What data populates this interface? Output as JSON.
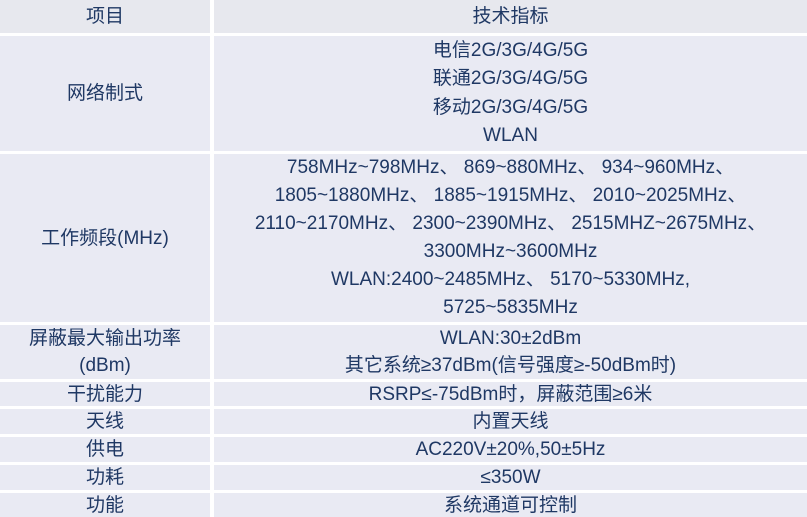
{
  "table": {
    "header": {
      "col1": "项目",
      "col2": "技术指标"
    },
    "rows": [
      {
        "name_lines": [
          "网络制式"
        ],
        "value_lines": [
          "电信2G/3G/4G/5G",
          "联通2G/3G/4G/5G",
          "移动2G/3G/4G/5G",
          "WLAN"
        ]
      },
      {
        "name_lines": [
          "工作频段(MHz)"
        ],
        "value_lines": [
          "758MHz~798MHz、 869~880MHz、 934~960MHz、",
          "1805~1880MHz、 1885~1915MHz、 2010~2025MHz、",
          "2110~2170MHz、 2300~2390MHz、 2515MHZ~2675MHz、",
          "3300MHz~3600MHz",
          "WLAN:2400~2485MHz、 5170~5330MHz,",
          "5725~5835MHz"
        ]
      },
      {
        "name_lines": [
          "屏蔽最大输出功率",
          "(dBm)"
        ],
        "value_lines": [
          "WLAN:30±2dBm",
          "其它系统≥37dBm(信号强度≥-50dBm时)"
        ]
      },
      {
        "name_lines": [
          "干扰能力"
        ],
        "value_lines": [
          "RSRP≤-75dBm时，屏蔽范围≥6米"
        ]
      },
      {
        "name_lines": [
          "天线"
        ],
        "value_lines": [
          "内置天线"
        ]
      },
      {
        "name_lines": [
          "供电"
        ],
        "value_lines": [
          "AC220V±20%,50±5Hz"
        ]
      },
      {
        "name_lines": [
          "功耗"
        ],
        "value_lines": [
          "≤350W"
        ]
      },
      {
        "name_lines": [
          "功能"
        ],
        "value_lines": [
          "系统通道可控制"
        ]
      }
    ],
    "colors": {
      "cell_background": "#e9eaf3",
      "header_background": "#e7e8ee",
      "gridline": "#ffffff",
      "text": "#1f3864"
    }
  }
}
